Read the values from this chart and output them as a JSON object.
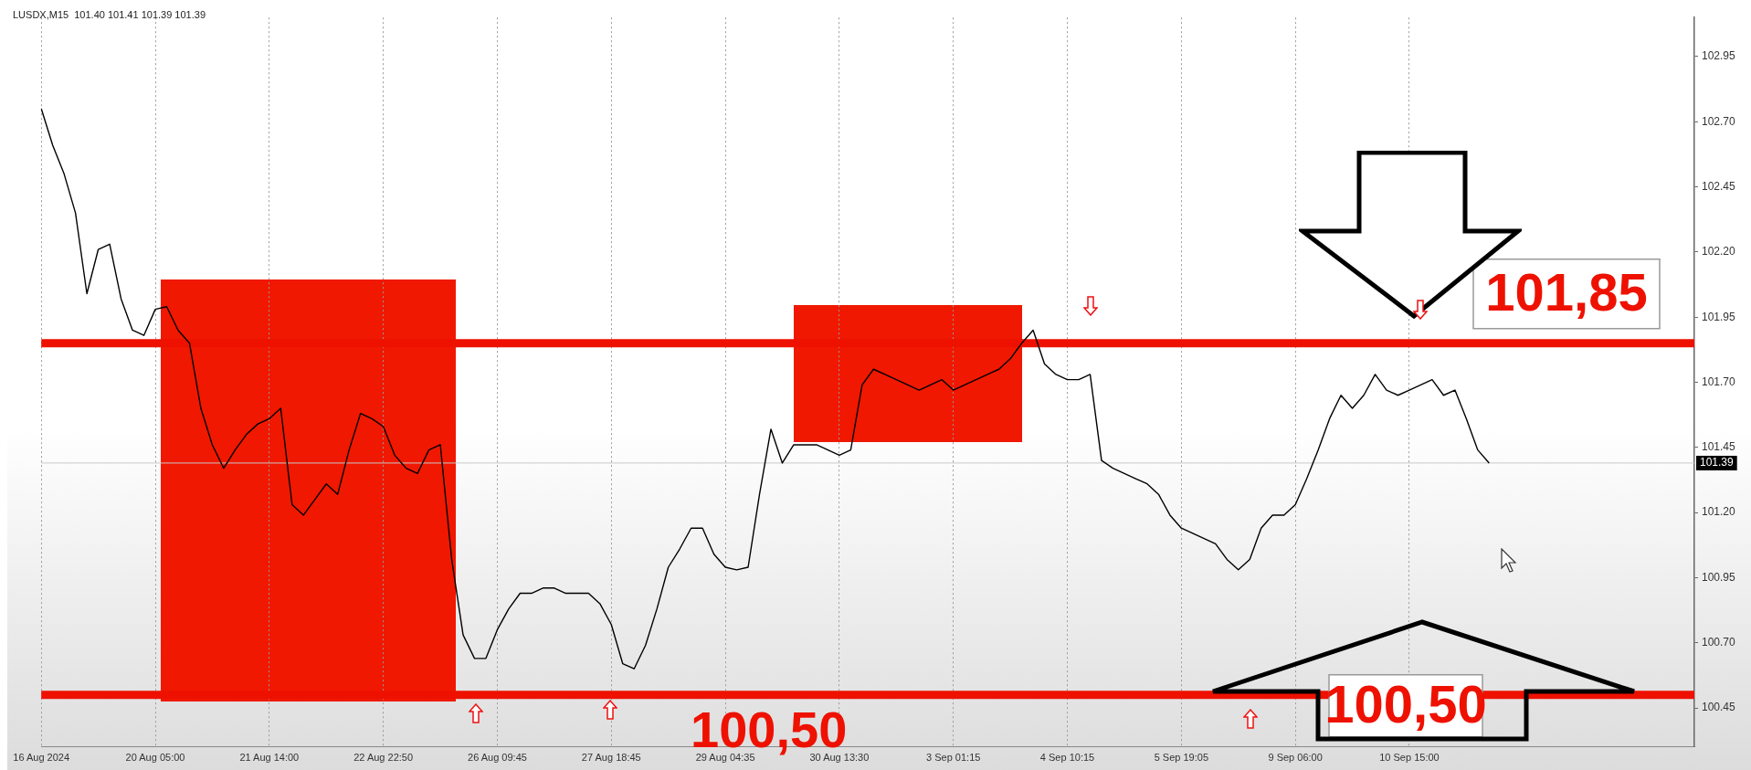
{
  "chart_data": {
    "type": "line",
    "title": "LUSDX,M15  101.40 101.41 101.39 101.39",
    "categories": [
      "16 Aug 2024",
      null,
      null,
      null,
      null,
      null,
      null,
      null,
      null,
      null,
      "20 Aug 05:00",
      null,
      null,
      null,
      null,
      null,
      null,
      null,
      null,
      null,
      "21 Aug 14:00",
      null,
      null,
      null,
      null,
      null,
      null,
      null,
      null,
      null,
      "22 Aug 22:50",
      null,
      null,
      null,
      null,
      null,
      null,
      null,
      null,
      null,
      "26 Aug 09:45",
      null,
      null,
      null,
      null,
      null,
      null,
      null,
      null,
      null,
      "27 Aug 18:45",
      null,
      null,
      null,
      null,
      null,
      null,
      null,
      null,
      null,
      "29 Aug 04:35",
      null,
      null,
      null,
      null,
      null,
      null,
      null,
      null,
      null,
      "30 Aug 13:30",
      null,
      null,
      null,
      null,
      null,
      null,
      null,
      null,
      null,
      "3 Sep 01:15",
      null,
      null,
      null,
      null,
      null,
      null,
      null,
      null,
      null,
      "4 Sep 10:15",
      null,
      null,
      null,
      null,
      null,
      null,
      null,
      null,
      null,
      "5 Sep 19:05",
      null,
      null,
      null,
      null,
      null,
      null,
      null,
      null,
      null,
      "9 Sep 06:00",
      null,
      null,
      null,
      null,
      null,
      null,
      null,
      null,
      null,
      "10 Sep 15:00",
      null,
      null,
      null,
      null,
      null,
      null,
      null,
      null,
      null,
      null,
      null,
      null,
      null,
      null,
      null,
      null,
      null,
      null,
      null,
      null,
      null,
      null,
      null,
      null,
      null
    ],
    "series": [
      {
        "color": "#000000",
        "values": [
          102.75,
          102.61,
          102.5,
          102.35,
          102.04,
          102.21,
          102.23,
          102.02,
          101.9,
          101.88,
          101.98,
          101.99,
          101.9,
          101.85,
          101.6,
          101.46,
          101.37,
          101.44,
          101.5,
          101.54,
          101.56,
          101.6,
          101.23,
          101.19,
          101.25,
          101.31,
          101.27,
          101.44,
          101.58,
          101.56,
          101.53,
          101.42,
          101.37,
          101.35,
          101.44,
          101.46,
          101.02,
          100.73,
          100.64,
          100.64,
          100.75,
          100.83,
          100.89,
          100.89,
          100.91,
          100.91,
          100.89,
          100.89,
          100.89,
          100.85,
          100.77,
          100.62,
          100.6,
          100.69,
          100.83,
          100.99,
          101.06,
          101.14,
          101.14,
          101.04,
          100.99,
          100.98,
          100.99,
          101.27,
          101.52,
          101.39,
          101.46,
          101.46,
          101.46,
          101.44,
          101.42,
          101.44,
          101.69,
          101.75,
          101.73,
          101.71,
          101.69,
          101.67,
          101.69,
          101.71,
          101.67,
          101.69,
          101.71,
          101.73,
          101.75,
          101.79,
          101.85,
          101.9,
          101.77,
          101.73,
          101.71,
          101.71,
          101.73,
          101.4,
          101.37,
          101.35,
          101.33,
          101.31,
          101.27,
          101.19,
          101.14,
          101.12,
          101.1,
          101.08,
          101.02,
          100.98,
          101.02,
          101.14,
          101.19,
          101.19,
          101.23,
          101.33,
          101.44,
          101.56,
          101.65,
          101.6,
          101.65,
          101.73,
          101.67,
          101.65,
          101.67,
          101.69,
          101.71,
          101.65,
          101.67,
          101.56,
          101.44,
          101.39,
          null,
          null,
          null,
          null,
          null,
          null,
          null,
          null,
          null,
          null,
          null,
          null,
          null,
          null,
          null,
          null,
          null,
          null
        ]
      }
    ],
    "ylim": [
      100.3,
      103.1
    ],
    "yticks": [
      100.45,
      {
        "value": 100.7,
        "label": "100.70"
      },
      100.95,
      {
        "value": 101.2,
        "label": "101.20"
      },
      101.45,
      {
        "value": 101.7,
        "label": "101.70"
      },
      101.95,
      {
        "value": 102.2,
        "label": "102.20"
      },
      102.45,
      {
        "value": 102.7,
        "label": "102.70"
      },
      102.95
    ],
    "grid": "x",
    "legend": false,
    "marker": "none",
    "line_style": "solid",
    "ref_lines": [
      {
        "axis": "y",
        "value": 101.85,
        "label": "101,85",
        "color": "#ee1100"
      },
      {
        "axis": "y",
        "value": 100.5,
        "label": "100,50",
        "color": "#ee1100"
      },
      {
        "axis": "y",
        "value": 101.39,
        "label": "101.39",
        "color": "#c8c8c8"
      }
    ],
    "annotations": [
      "100,50"
    ]
  }
}
